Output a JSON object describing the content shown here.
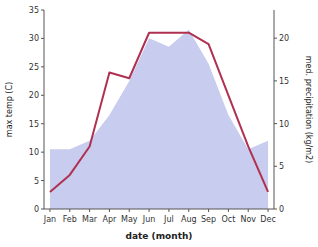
{
  "chart_data": {
    "type": "line",
    "categories": [
      "Jan",
      "Feb",
      "Mar",
      "Apr",
      "May",
      "Jun",
      "Jul",
      "Aug",
      "Sep",
      "Oct",
      "Nov",
      "Dec"
    ],
    "xlabel": "date (month)",
    "ylabel": "max temp (C)",
    "y2label": "med. precipitation (kg/m2)",
    "ylim": [
      0,
      35
    ],
    "yticks": [
      0,
      5,
      10,
      15,
      20,
      25,
      30,
      35
    ],
    "y2lim": [
      0,
      23.3
    ],
    "y2ticks": [
      0,
      5,
      10,
      15,
      20
    ],
    "grid": false,
    "series": [
      {
        "type": "area",
        "axis": "y2",
        "color": "#c8ccee",
        "values": [
          7,
          7,
          8,
          11,
          15,
          20,
          19,
          21,
          17,
          11,
          7,
          8
        ]
      },
      {
        "type": "line",
        "color": "#b03050",
        "values": [
          3,
          6,
          11,
          24,
          23,
          31,
          31,
          31,
          29,
          20,
          11,
          3
        ]
      }
    ]
  }
}
